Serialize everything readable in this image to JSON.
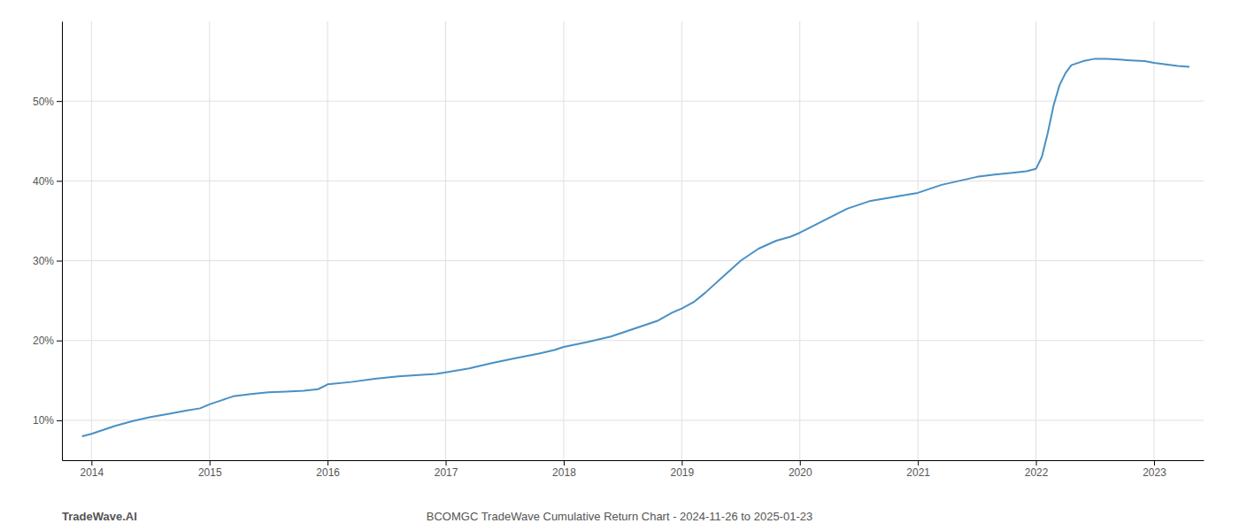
{
  "chart_data": {
    "type": "line",
    "title": "BCOMGC TradeWave Cumulative Return Chart - 2024-11-26 to 2025-01-23",
    "annotations": [
      "TradeWave.AI"
    ],
    "color": "#4a90c4",
    "grid": true,
    "x": [
      2013.92,
      2014.0,
      2014.1,
      2014.2,
      2014.35,
      2014.5,
      2014.65,
      2014.8,
      2014.92,
      2015.0,
      2015.1,
      2015.2,
      2015.35,
      2015.5,
      2015.65,
      2015.8,
      2015.92,
      2016.0,
      2016.2,
      2016.4,
      2016.6,
      2016.8,
      2016.92,
      2017.0,
      2017.2,
      2017.4,
      2017.6,
      2017.8,
      2017.92,
      2018.0,
      2018.2,
      2018.4,
      2018.6,
      2018.8,
      2018.92,
      2019.0,
      2019.1,
      2019.2,
      2019.35,
      2019.5,
      2019.65,
      2019.8,
      2019.92,
      2020.0,
      2020.2,
      2020.4,
      2020.6,
      2020.8,
      2020.92,
      2021.0,
      2021.1,
      2021.2,
      2021.35,
      2021.5,
      2021.65,
      2021.8,
      2021.92,
      2022.0,
      2022.05,
      2022.1,
      2022.15,
      2022.2,
      2022.25,
      2022.3,
      2022.4,
      2022.5,
      2022.6,
      2022.7,
      2022.8,
      2022.92,
      2023.0,
      2023.1,
      2023.2,
      2023.3
    ],
    "values": [
      8.0,
      8.3,
      8.8,
      9.3,
      9.9,
      10.4,
      10.8,
      11.2,
      11.5,
      12.0,
      12.5,
      13.0,
      13.3,
      13.5,
      13.6,
      13.7,
      13.9,
      14.5,
      14.8,
      15.2,
      15.5,
      15.7,
      15.8,
      16.0,
      16.5,
      17.2,
      17.8,
      18.4,
      18.8,
      19.2,
      19.8,
      20.5,
      21.5,
      22.5,
      23.5,
      24.0,
      24.8,
      26.0,
      28.0,
      30.0,
      31.5,
      32.5,
      33.0,
      33.5,
      35.0,
      36.5,
      37.5,
      38.0,
      38.3,
      38.5,
      39.0,
      39.5,
      40.0,
      40.5,
      40.8,
      41.0,
      41.2,
      41.5,
      43.0,
      46.0,
      49.5,
      52.0,
      53.5,
      54.5,
      55.0,
      55.3,
      55.3,
      55.2,
      55.1,
      55.0,
      54.8,
      54.6,
      54.4,
      54.3
    ],
    "xlim": [
      2013.75,
      2023.42
    ],
    "xticks": [
      2014,
      2015,
      2016,
      2017,
      2018,
      2019,
      2020,
      2021,
      2022,
      2023
    ],
    "ylim": [
      5,
      60
    ],
    "yticks": [
      {
        "value": 10,
        "label": "10%"
      },
      {
        "value": 20,
        "label": "20%"
      },
      {
        "value": 30,
        "label": "30%"
      },
      {
        "value": 40,
        "label": "40%"
      },
      {
        "value": 50,
        "label": "50%"
      }
    ]
  }
}
